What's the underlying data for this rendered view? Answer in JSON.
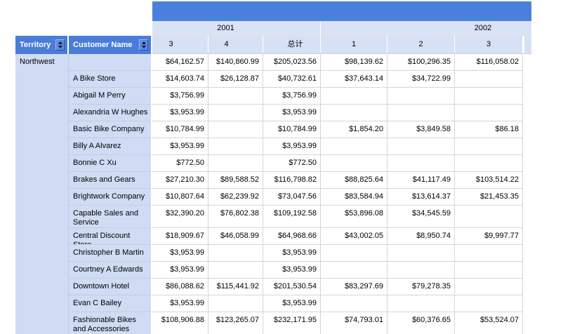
{
  "colors": {
    "band_blue": "#4a80dc",
    "header_blue": "#4a7cd8",
    "group_light_blue": "#d9e2f7",
    "row_header_blue": "#cfdcf4",
    "gridline": "#d6d6d6"
  },
  "table": {
    "corner": {
      "territory_label": "Territory",
      "customer_label": "Customer Name"
    },
    "year_groups": [
      "2001",
      "2002"
    ],
    "period_headers": [
      "3",
      "4",
      "总计",
      "1",
      "2",
      "3"
    ],
    "rows": [
      {
        "territory": "Northwest",
        "customer": "",
        "values": [
          "$64,162.57",
          "$140,860.99",
          "$205,023.56",
          "$98,139.62",
          "$100,296.35",
          "$116,058.02"
        ]
      },
      {
        "territory": "",
        "customer": "A Bike Store",
        "values": [
          "$14,603.74",
          "$26,128.87",
          "$40,732.61",
          "$37,643.14",
          "$34,722.99",
          ""
        ]
      },
      {
        "territory": "",
        "customer": "Abigail M Perry",
        "values": [
          "$3,756.99",
          "",
          "$3,756.99",
          "",
          "",
          ""
        ]
      },
      {
        "territory": "",
        "customer": "Alexandria W Hughes",
        "values": [
          "$3,953.99",
          "",
          "$3,953.99",
          "",
          "",
          ""
        ]
      },
      {
        "territory": "",
        "customer": "Basic Bike Company",
        "values": [
          "$10,784.99",
          "",
          "$10,784.99",
          "$1,854.20",
          "$3,849.58",
          "$86.18"
        ]
      },
      {
        "territory": "",
        "customer": "Billy A Alvarez",
        "values": [
          "$3,953.99",
          "",
          "$3,953.99",
          "",
          "",
          ""
        ]
      },
      {
        "territory": "",
        "customer": "Bonnie C Xu",
        "values": [
          "$772.50",
          "",
          "$772.50",
          "",
          "",
          ""
        ]
      },
      {
        "territory": "",
        "customer": "Brakes and Gears",
        "values": [
          "$27,210.30",
          "$89,588.52",
          "$116,798.82",
          "$88,825.64",
          "$41,117.49",
          "$103,514.22"
        ]
      },
      {
        "territory": "",
        "customer": "Brightwork Company",
        "values": [
          "$10,807.64",
          "$62,239.92",
          "$73,047.56",
          "$83,584.94",
          "$13,614.37",
          "$21,453.35"
        ]
      },
      {
        "territory": "",
        "customer": "Capable Sales and Service",
        "values": [
          "$32,390.20",
          "$76,802.38",
          "$109,192.58",
          "$53,896.08",
          "$34,545.59",
          ""
        ]
      },
      {
        "territory": "",
        "customer": "Central Discount Store",
        "values": [
          "$18,909.67",
          "$46,058.99",
          "$64,968.66",
          "$43,002.05",
          "$8,950.74",
          "$9,997.77"
        ]
      },
      {
        "territory": "",
        "customer": "Christopher B Martin",
        "values": [
          "$3,953.99",
          "",
          "$3,953.99",
          "",
          "",
          ""
        ]
      },
      {
        "territory": "",
        "customer": "Courtney A Edwards",
        "values": [
          "$3,953.99",
          "",
          "$3,953.99",
          "",
          "",
          ""
        ]
      },
      {
        "territory": "",
        "customer": "Downtown Hotel",
        "values": [
          "$86,088.62",
          "$115,441.92",
          "$201,530.54",
          "$83,297.69",
          "$79,278.35",
          ""
        ]
      },
      {
        "territory": "",
        "customer": "Evan C Bailey",
        "values": [
          "$3,953.99",
          "",
          "$3,953.99",
          "",
          "",
          ""
        ]
      },
      {
        "territory": "",
        "customer": "Fashionable Bikes and Accessories",
        "values": [
          "$108,906.88",
          "$123,265.07",
          "$232,171.95",
          "$74,793.01",
          "$60,376.65",
          "$53,524.07"
        ]
      }
    ]
  }
}
